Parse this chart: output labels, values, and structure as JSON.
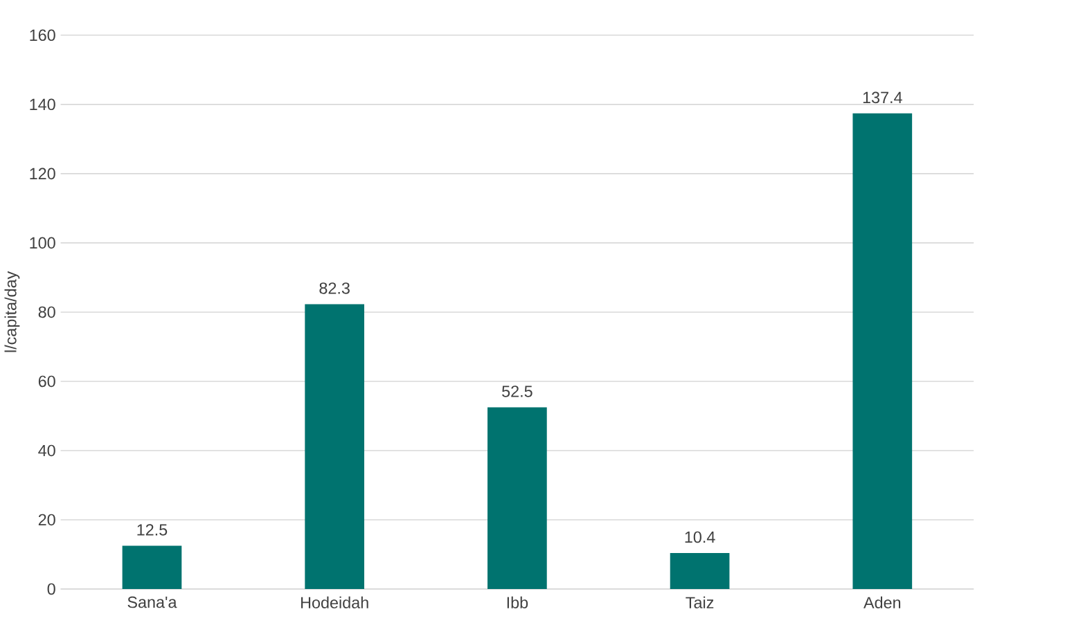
{
  "chart_data": {
    "type": "bar",
    "ylabel": "l/capita/day",
    "categories": [
      "Sana'a",
      "Hodeidah",
      "Ibb",
      "Taiz",
      "Aden"
    ],
    "values": [
      12.5,
      82.3,
      52.5,
      10.4,
      137.4
    ],
    "color": "#00736f",
    "ylim": [
      0,
      160
    ],
    "yticks": [
      0,
      20,
      40,
      60,
      80,
      100,
      120,
      140,
      160
    ],
    "grid": "y",
    "data_labels": true
  }
}
